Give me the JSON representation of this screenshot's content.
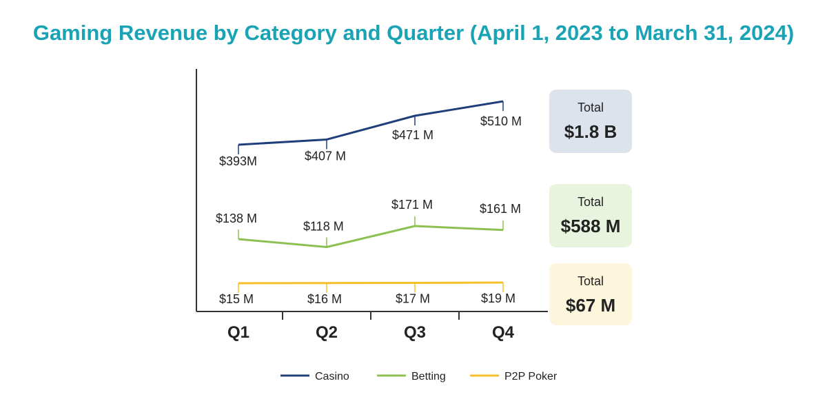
{
  "title": "Gaming Revenue by Category and Quarter (April 1, 2023 to March 31, 2024)",
  "chart_data": {
    "type": "line",
    "title": "Gaming Revenue by Category and Quarter (April 1, 2023 to March 31, 2024)",
    "categories": [
      "Q1",
      "Q2",
      "Q3",
      "Q4"
    ],
    "series": [
      {
        "name": "Casino",
        "color": "#1f3f7a",
        "values": [
          393,
          407,
          471,
          510
        ],
        "labels": [
          "$393M",
          "$407 M",
          "$471 M",
          "$510 M"
        ],
        "total_label": "Total",
        "total_value": "$1.8 B",
        "total_bg": "#dde3ec"
      },
      {
        "name": "Betting",
        "color": "#8cc152",
        "values": [
          138,
          118,
          171,
          161
        ],
        "labels": [
          "$138 M",
          "$118 M",
          "$171 M",
          "$161 M"
        ],
        "total_label": "Total",
        "total_value": "$588 M",
        "total_bg": "#e9f4df"
      },
      {
        "name": "P2P Poker",
        "color": "#f5bf2a",
        "values": [
          15,
          16,
          17,
          19
        ],
        "labels": [
          "$15 M",
          "$16 M",
          "$17 M",
          "$19 M"
        ],
        "total_label": "Total",
        "total_value": "$67 M",
        "total_bg": "#fdf5dc"
      }
    ],
    "units": "USD millions",
    "grid": false,
    "legend": "bottom-center"
  }
}
